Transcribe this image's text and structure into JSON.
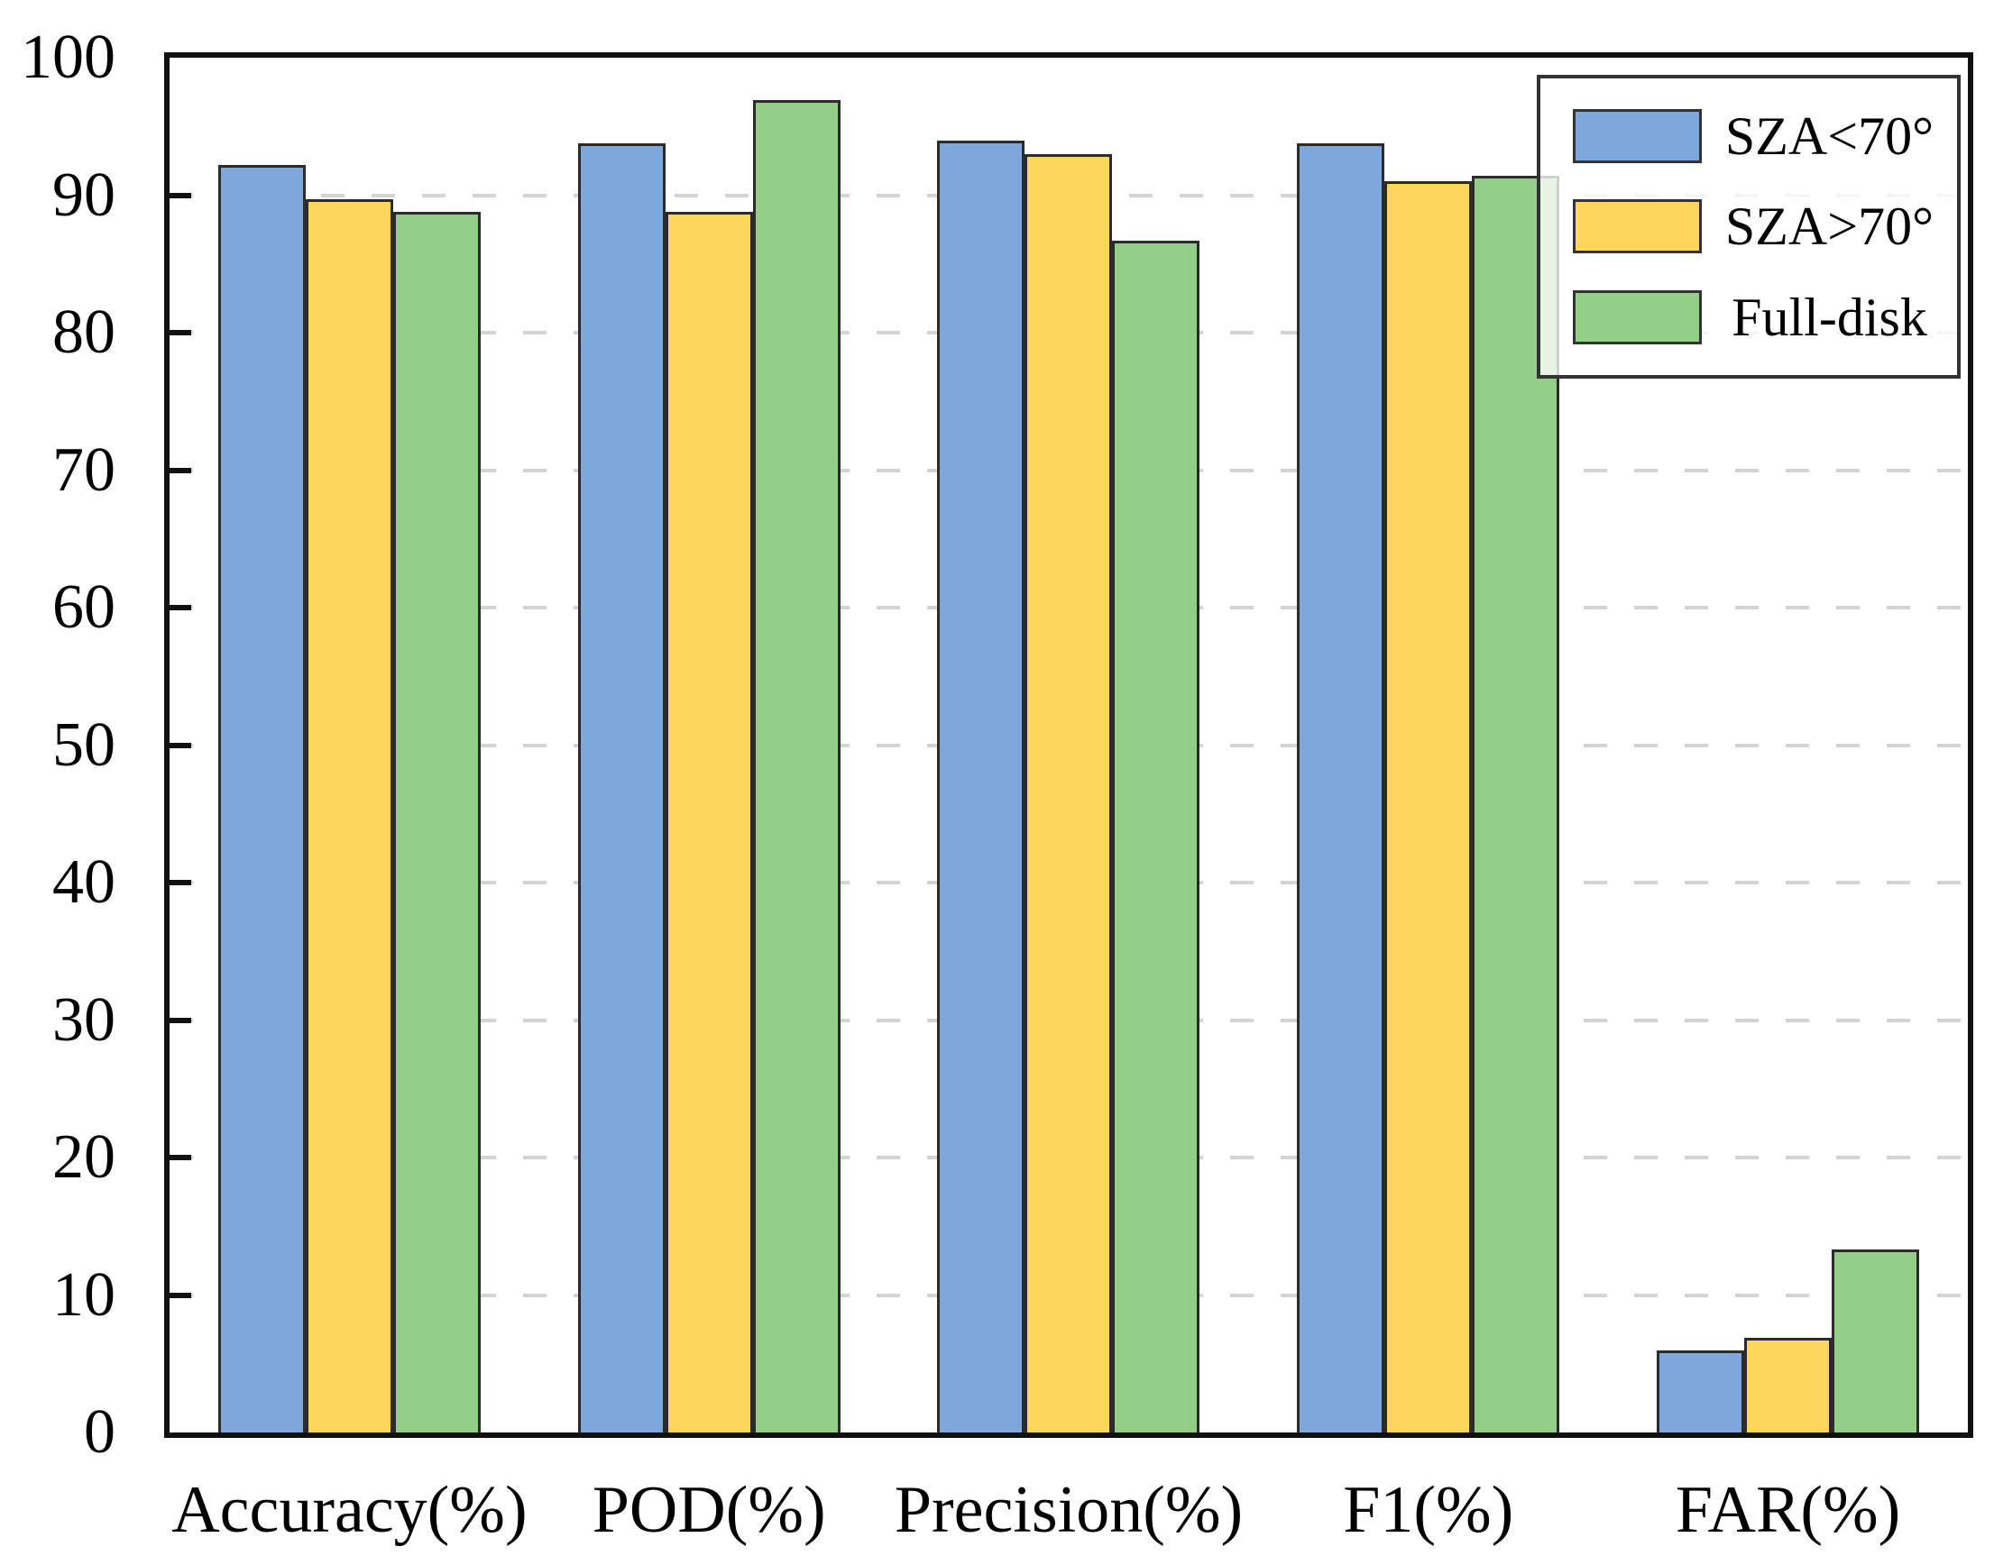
{
  "chart_data": {
    "type": "bar",
    "title": "",
    "xlabel": "",
    "ylabel": "",
    "categories": [
      "Accuracy(%)",
      "POD(%)",
      "Precision(%)",
      "F1(%)",
      "FAR(%)"
    ],
    "series": [
      {
        "name": "SZA<70°",
        "color": "#7EA7DC",
        "values": [
          92.2,
          93.8,
          94.0,
          93.8,
          6.0
        ]
      },
      {
        "name": "SZA>70°",
        "color": "#FFD65C",
        "values": [
          89.7,
          88.8,
          93.0,
          91.0,
          6.9
        ]
      },
      {
        "name": "Full-disk",
        "color": "#92CE86",
        "values": [
          88.8,
          96.9,
          86.7,
          91.4,
          13.3
        ]
      }
    ],
    "ylim": [
      0,
      100
    ],
    "yticks": [
      0,
      10,
      20,
      30,
      40,
      50,
      60,
      70,
      80,
      90,
      100
    ],
    "grid": {
      "axis": "y",
      "style": "dashed",
      "color": "#d4d4d4",
      "interval": 10
    },
    "legend_position": "top-right",
    "bar_edge_color": "#2b2b2b",
    "axis_color": "#111111"
  }
}
